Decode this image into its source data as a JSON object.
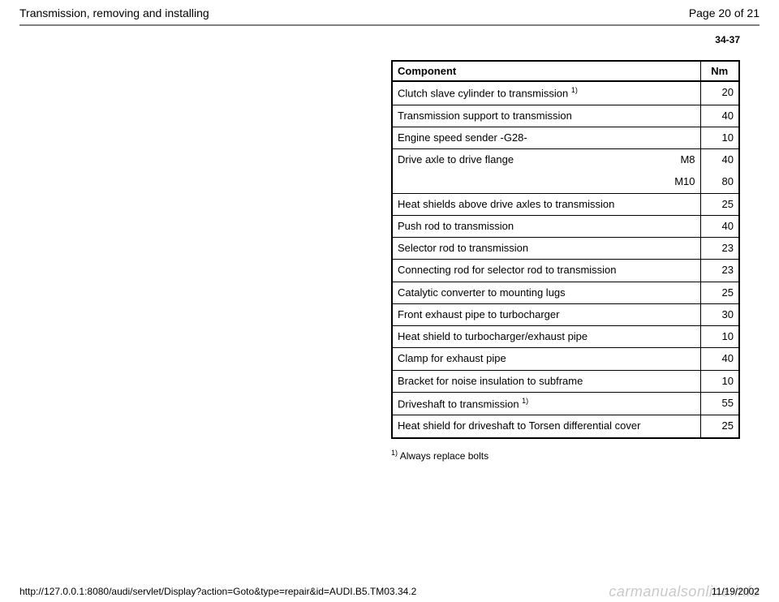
{
  "header": {
    "title": "Transmission, removing and installing",
    "page_label": "Page 20 of 21"
  },
  "section_number": "34-37",
  "table": {
    "head_component": "Component",
    "head_nm": "Nm",
    "rows": {
      "r1": {
        "label": "Clutch slave cylinder to transmission ",
        "sup": "1)",
        "nm": "20"
      },
      "r2": {
        "label": "Transmission support to transmission",
        "nm": "40"
      },
      "r3": {
        "label": "Engine speed sender -G28-",
        "nm": "10"
      },
      "r4a": {
        "label": "Drive axle to drive flange",
        "sub": "M8",
        "nm": "40"
      },
      "r4b": {
        "label": "",
        "sub": "M10",
        "nm": "80"
      },
      "r5": {
        "label": "Heat shields above drive axles to transmission",
        "nm": "25"
      },
      "r6": {
        "label": "Push rod to transmission",
        "nm": "40"
      },
      "r7": {
        "label": "Selector rod to transmission",
        "nm": "23"
      },
      "r8": {
        "label": "Connecting rod for selector rod to transmission",
        "nm": "23"
      },
      "r9": {
        "label": "Catalytic converter to mounting lugs",
        "nm": "25"
      },
      "r10": {
        "label": "Front exhaust pipe to turbocharger",
        "nm": "30"
      },
      "r11": {
        "label": "Heat shield to turbocharger/exhaust pipe",
        "nm": "10"
      },
      "r12": {
        "label": "Clamp for exhaust pipe",
        "nm": "40"
      },
      "r13": {
        "label": "Bracket for noise insulation to subframe",
        "nm": "10"
      },
      "r14": {
        "label": "Driveshaft to transmission ",
        "sup": "1)",
        "nm": "55"
      },
      "r15": {
        "label": "Heat shield for driveshaft to Torsen differential cover",
        "nm": "25"
      }
    }
  },
  "footnote": {
    "sup": "1)",
    "text": " Always replace bolts"
  },
  "footer": {
    "url": "http://127.0.0.1:8080/audi/servlet/Display?action=Goto&type=repair&id=AUDI.B5.TM03.34.2",
    "date": "11/19/2002"
  },
  "watermark": "carmanualsonline.info"
}
